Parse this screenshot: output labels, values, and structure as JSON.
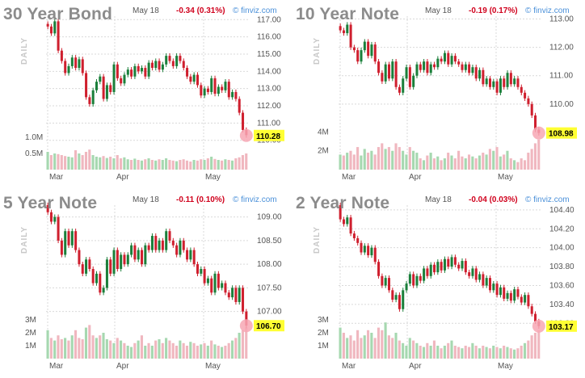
{
  "brand": "© finviz.com",
  "daily_label": "DAILY",
  "date_label": "May 18",
  "month_labels": [
    "Mar",
    "Apr",
    "May"
  ],
  "up_color": "#1a7f3a",
  "down_color": "#cf1f2e",
  "volume_up_color": "#a6d8b0",
  "volume_down_color": "#f0b7bf",
  "last_price_highlight": "#ffff33",
  "chart_data": [
    {
      "type": "candlestick",
      "title": "30 Year Bond",
      "date": "May 18",
      "change": "-0.34 (0.31%)",
      "last_price": "110.28",
      "yticks": [
        "117.00",
        "116.00",
        "115.00",
        "114.00",
        "113.00",
        "112.00",
        "111.00",
        "110.00"
      ],
      "ylim": [
        109.8,
        117.2
      ],
      "volume_ticks": [
        "1.0M",
        "0.5M"
      ],
      "volume_max": 1.6,
      "path": [
        116.6,
        116.2,
        116.9,
        115.2,
        114.6,
        113.9,
        114.3,
        114.8,
        114.2,
        114.7,
        113.9,
        112.5,
        112.1,
        112.9,
        113.4,
        113.7,
        112.4,
        113.2,
        112.8,
        114.4,
        113.6,
        113.3,
        113.8,
        114.1,
        113.7,
        114.3,
        114.0,
        114.2,
        113.7,
        114.5,
        114.2,
        114.6,
        114.1,
        114.4,
        114.9,
        114.6,
        114.3,
        114.9,
        114.6,
        114.2,
        113.7,
        113.4,
        113.8,
        113.2,
        112.6,
        113.0,
        112.8,
        113.6,
        112.7,
        113.1,
        112.9,
        113.4,
        112.5,
        112.8,
        112.4,
        111.6,
        110.6,
        110.3
      ],
      "volume": [
        0.55,
        0.45,
        0.5,
        0.48,
        0.45,
        0.42,
        0.4,
        0.38,
        0.6,
        0.5,
        0.45,
        0.55,
        0.62,
        0.45,
        0.4,
        0.38,
        0.42,
        0.36,
        0.4,
        0.35,
        0.45,
        0.35,
        0.38,
        0.32,
        0.3,
        0.34,
        0.3,
        0.28,
        0.32,
        0.35,
        0.3,
        0.28,
        0.32,
        0.3,
        0.35,
        0.3,
        0.28,
        0.26,
        0.3,
        0.32,
        0.28,
        0.25,
        0.3,
        0.28,
        0.32,
        0.3,
        0.35,
        0.4,
        0.33,
        0.3,
        0.28,
        0.32,
        0.3,
        0.28,
        0.35,
        0.38,
        0.45,
        0.5
      ]
    },
    {
      "type": "candlestick",
      "title": "10 Year Note",
      "date": "May 18",
      "change": "-0.19 (0.17%)",
      "last_price": "108.98",
      "yticks": [
        "113.00",
        "112.00",
        "111.00",
        "110.00"
      ],
      "ylim": [
        108.6,
        113.1
      ],
      "volume_ticks": [
        "4M",
        "2M"
      ],
      "volume_max": 5.5,
      "path": [
        112.6,
        112.5,
        112.8,
        112.0,
        111.9,
        111.5,
        111.9,
        112.2,
        111.7,
        112.1,
        111.5,
        111.1,
        110.8,
        111.4,
        110.9,
        111.5,
        110.6,
        110.4,
        110.9,
        111.3,
        110.6,
        111.0,
        111.4,
        111.2,
        111.5,
        111.1,
        111.4,
        111.3,
        111.6,
        111.5,
        111.8,
        111.4,
        111.7,
        111.5,
        111.4,
        111.2,
        111.4,
        111.1,
        111.3,
        110.9,
        111.2,
        110.7,
        110.9,
        110.6,
        110.8,
        110.4,
        110.9,
        110.6,
        111.1,
        110.7,
        110.9,
        110.6,
        110.4,
        110.2,
        110.0,
        109.6,
        109.1,
        108.98
      ],
      "volume": [
        1.6,
        1.5,
        1.8,
        2.0,
        1.6,
        2.4,
        1.5,
        2.2,
        1.8,
        2.0,
        1.6,
        2.4,
        2.8,
        2.2,
        2.4,
        2.0,
        2.8,
        2.4,
        2.0,
        1.6,
        2.4,
        2.0,
        1.8,
        1.2,
        1.0,
        1.5,
        1.8,
        1.2,
        1.4,
        1.0,
        1.2,
        1.8,
        1.5,
        1.2,
        2.0,
        1.4,
        1.2,
        1.6,
        1.4,
        1.2,
        1.5,
        1.8,
        1.6,
        2.2,
        2.0,
        2.4,
        1.4,
        1.6,
        2.0,
        1.2,
        1.0,
        0.8,
        1.2,
        1.0,
        1.8,
        2.2,
        2.8,
        3.2
      ]
    },
    {
      "type": "candlestick",
      "title": "5 Year Note",
      "date": "May 18",
      "change": "-0.11 (0.10%)",
      "last_price": "106.70",
      "yticks": [
        "109.00",
        "108.50",
        "108.00",
        "107.50",
        "107.00"
      ],
      "ylim": [
        106.55,
        109.25
      ],
      "volume_ticks": [
        "3M",
        "2M",
        "1M"
      ],
      "volume_max": 4.0,
      "path": [
        109.1,
        108.9,
        109.0,
        108.5,
        108.2,
        108.7,
        108.4,
        108.7,
        108.3,
        108.0,
        107.8,
        108.1,
        107.9,
        107.6,
        107.8,
        107.4,
        107.5,
        108.1,
        107.8,
        108.3,
        107.9,
        108.2,
        108.0,
        108.2,
        108.4,
        108.1,
        108.3,
        108.0,
        108.4,
        108.3,
        108.6,
        108.3,
        108.5,
        108.3,
        108.7,
        108.5,
        108.4,
        108.2,
        108.5,
        108.3,
        108.1,
        108.3,
        108.0,
        107.8,
        107.9,
        107.6,
        107.7,
        107.4,
        107.8,
        107.5,
        107.6,
        107.4,
        107.3,
        107.5,
        107.2,
        107.5,
        107.0,
        106.7
      ],
      "volume": [
        2.2,
        1.6,
        1.4,
        1.8,
        1.5,
        1.6,
        1.4,
        1.8,
        2.2,
        1.6,
        1.5,
        2.4,
        2.6,
        1.8,
        1.6,
        1.8,
        2.0,
        1.5,
        1.4,
        1.2,
        1.6,
        1.4,
        1.2,
        1.0,
        0.9,
        1.2,
        1.4,
        1.8,
        1.0,
        1.2,
        1.0,
        1.4,
        1.5,
        1.2,
        1.6,
        1.4,
        1.2,
        1.0,
        1.4,
        1.2,
        1.0,
        1.3,
        1.2,
        1.0,
        1.1,
        1.2,
        1.0,
        1.4,
        1.1,
        1.0,
        0.9,
        1.0,
        1.2,
        1.4,
        1.6,
        2.0,
        2.2,
        2.4
      ]
    },
    {
      "type": "candlestick",
      "title": "2 Year Note",
      "date": "May 18",
      "change": "-0.04 (0.03%)",
      "last_price": "103.17",
      "yticks": [
        "104.40",
        "104.20",
        "104.00",
        "103.80",
        "103.60",
        "103.40",
        "103.20"
      ],
      "ylim": [
        103.1,
        104.45
      ],
      "volume_ticks": [
        "3M",
        "2M",
        "1M"
      ],
      "volume_max": 4.0,
      "path": [
        104.3,
        104.25,
        104.32,
        104.15,
        104.1,
        104.05,
        103.95,
        104.02,
        103.92,
        104.0,
        103.85,
        103.7,
        103.6,
        103.68,
        103.55,
        103.45,
        103.5,
        103.35,
        103.55,
        103.62,
        103.72,
        103.6,
        103.7,
        103.65,
        103.78,
        103.7,
        103.82,
        103.74,
        103.85,
        103.76,
        103.88,
        103.8,
        103.9,
        103.82,
        103.78,
        103.86,
        103.74,
        103.7,
        103.78,
        103.66,
        103.72,
        103.6,
        103.68,
        103.55,
        103.62,
        103.5,
        103.58,
        103.46,
        103.52,
        103.44,
        103.56,
        103.48,
        103.42,
        103.5,
        103.38,
        103.3,
        103.22,
        103.17
      ],
      "volume": [
        2.4,
        2.0,
        1.6,
        1.8,
        1.4,
        2.2,
        1.6,
        1.8,
        2.2,
        2.0,
        1.6,
        2.4,
        2.2,
        2.8,
        1.8,
        1.6,
        2.0,
        1.4,
        1.2,
        1.0,
        1.6,
        1.4,
        1.2,
        1.0,
        0.9,
        1.2,
        1.0,
        1.4,
        1.0,
        0.8,
        1.0,
        1.2,
        1.4,
        1.0,
        0.9,
        0.8,
        1.0,
        0.9,
        1.2,
        1.0,
        0.8,
        1.0,
        0.9,
        0.8,
        1.0,
        0.9,
        0.8,
        1.0,
        0.9,
        0.8,
        0.7,
        0.8,
        1.0,
        1.2,
        1.4,
        1.8,
        2.0,
        2.2
      ]
    }
  ]
}
